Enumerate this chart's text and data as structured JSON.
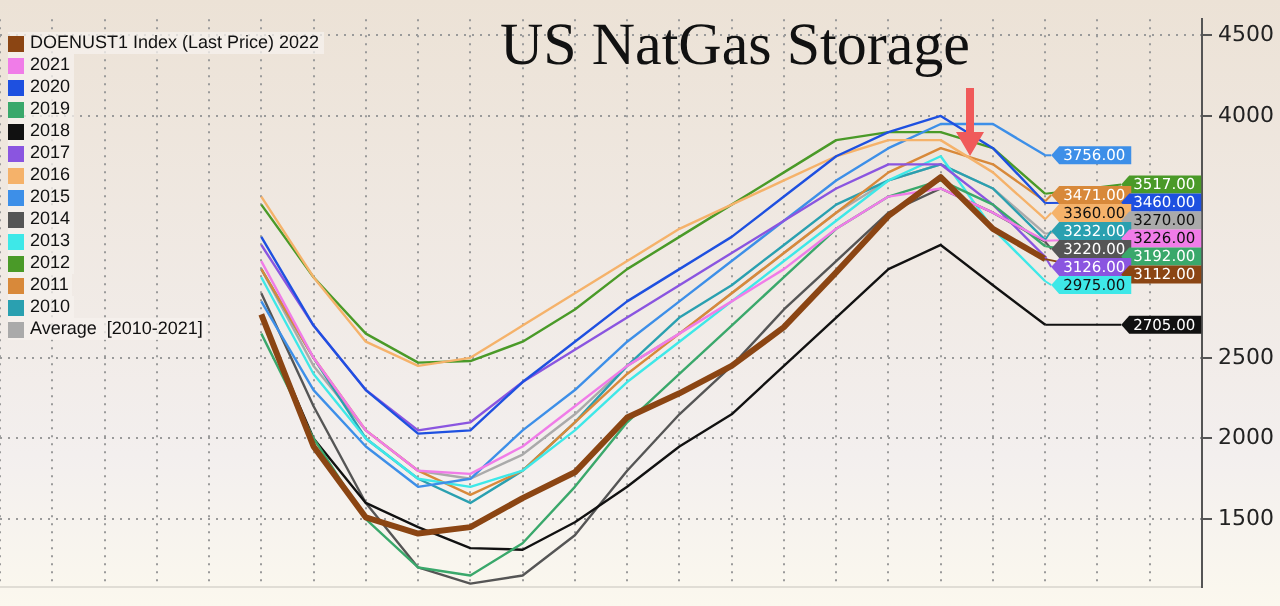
{
  "chart_data": {
    "type": "line",
    "title": "US NatGas Storage",
    "categories": [
      null,
      null,
      null,
      null,
      null,
      null,
      null,
      null,
      null,
      null,
      null,
      null,
      null,
      null,
      null,
      null,
      null,
      null,
      null,
      null,
      null,
      null,
      null,
      null
    ],
    "ylim": [
      1080,
      4600
    ],
    "yticks": [
      1500,
      2000,
      2500,
      4000,
      4500
    ],
    "grid": true,
    "legend": "top left",
    "tick_labels": "y",
    "marker": "none",
    "line_style": "solid",
    "series": [
      {
        "name": "DOENUST1 Index (Last Price) 2022",
        "color": "#8b4513",
        "values": [
          null,
          null,
          null,
          null,
          null,
          2770,
          1950,
          1510,
          1410,
          1450,
          1630,
          1790,
          2130,
          2280,
          2450,
          2690,
          3030,
          3380,
          3620,
          3300,
          3112,
          null,
          null,
          null
        ],
        "value_labels": [
          null,
          null,
          null,
          null,
          null,
          null,
          null,
          null,
          null,
          null,
          null,
          null,
          null,
          null,
          null,
          null,
          null,
          null,
          null,
          null,
          "3112.00",
          null,
          null,
          null
        ]
      },
      {
        "name": "2021",
        "color": "#f07ce8",
        "values": [
          null,
          null,
          null,
          null,
          null,
          3100,
          2500,
          2050,
          1800,
          1780,
          1950,
          2200,
          2450,
          2650,
          2850,
          3050,
          3300,
          3500,
          3550,
          3400,
          3226,
          null,
          null,
          null
        ],
        "value_labels": [
          null,
          null,
          null,
          null,
          null,
          null,
          null,
          null,
          null,
          null,
          null,
          null,
          null,
          null,
          null,
          null,
          null,
          null,
          null,
          null,
          "3226.00",
          null,
          null,
          null
        ]
      },
      {
        "name": "2020",
        "color": "#1e50e0",
        "values": [
          null,
          null,
          null,
          null,
          null,
          3250,
          2700,
          2300,
          2030,
          2050,
          2350,
          2600,
          2850,
          3050,
          3250,
          3500,
          3750,
          3900,
          4000,
          3800,
          3460,
          null,
          null,
          null
        ],
        "value_labels": [
          null,
          null,
          null,
          null,
          null,
          null,
          null,
          null,
          null,
          null,
          null,
          null,
          null,
          null,
          null,
          null,
          null,
          null,
          null,
          null,
          "3460.00",
          null,
          null,
          null
        ]
      },
      {
        "name": "2019",
        "color": "#3aa86b",
        "values": [
          null,
          null,
          null,
          null,
          null,
          2650,
          2000,
          1500,
          1200,
          1150,
          1350,
          1700,
          2100,
          2400,
          2700,
          3000,
          3300,
          3500,
          3600,
          3450,
          3192,
          null,
          null,
          null
        ],
        "value_labels": [
          null,
          null,
          null,
          null,
          null,
          null,
          null,
          null,
          null,
          null,
          null,
          null,
          null,
          null,
          null,
          null,
          null,
          null,
          null,
          null,
          "3192.00",
          null,
          null,
          null
        ]
      },
      {
        "name": "2018",
        "color": "#111111",
        "values": [
          null,
          null,
          null,
          null,
          null,
          2750,
          2000,
          1600,
          1450,
          1320,
          1310,
          1480,
          1700,
          1950,
          2150,
          2450,
          2750,
          3050,
          3200,
          2950,
          2705,
          null,
          null,
          null
        ],
        "value_labels": [
          null,
          null,
          null,
          null,
          null,
          null,
          null,
          null,
          null,
          null,
          null,
          null,
          null,
          null,
          null,
          null,
          null,
          null,
          null,
          null,
          "2705.00",
          null,
          null,
          null
        ]
      },
      {
        "name": "2017",
        "color": "#8a55e0",
        "values": [
          null,
          null,
          null,
          null,
          null,
          3200,
          2700,
          2300,
          2050,
          2100,
          2350,
          2550,
          2750,
          2950,
          3150,
          3350,
          3550,
          3700,
          3700,
          3450,
          3126,
          null,
          null,
          null
        ],
        "value_labels": [
          null,
          null,
          null,
          null,
          null,
          null,
          null,
          null,
          null,
          null,
          null,
          null,
          null,
          null,
          null,
          null,
          null,
          null,
          null,
          null,
          "3126.00",
          null,
          null,
          null
        ]
      },
      {
        "name": "2016",
        "color": "#f5b26a",
        "values": [
          null,
          null,
          null,
          null,
          null,
          3500,
          3000,
          2600,
          2450,
          2500,
          2700,
          2900,
          3100,
          3300,
          3450,
          3600,
          3750,
          3850,
          3850,
          3650,
          3360,
          null,
          null,
          null
        ],
        "value_labels": [
          null,
          null,
          null,
          null,
          null,
          null,
          null,
          null,
          null,
          null,
          null,
          null,
          null,
          null,
          null,
          null,
          null,
          null,
          null,
          null,
          "3360.00",
          null,
          null,
          null
        ]
      },
      {
        "name": "2015",
        "color": "#3d8fe8",
        "values": [
          null,
          null,
          null,
          null,
          null,
          2850,
          2300,
          1950,
          1700,
          1750,
          2050,
          2300,
          2600,
          2850,
          3100,
          3350,
          3600,
          3800,
          3950,
          3950,
          3756,
          null,
          null,
          null
        ],
        "value_labels": [
          null,
          null,
          null,
          null,
          null,
          null,
          null,
          null,
          null,
          null,
          null,
          null,
          null,
          null,
          null,
          null,
          null,
          null,
          null,
          null,
          "3756.00",
          null,
          null,
          null
        ]
      },
      {
        "name": "2014",
        "color": "#555555",
        "values": [
          null,
          null,
          null,
          null,
          null,
          2900,
          2200,
          1600,
          1200,
          1100,
          1150,
          1400,
          1800,
          2150,
          2450,
          2800,
          3100,
          3400,
          3550,
          3400,
          3220,
          null,
          null,
          null
        ],
        "value_labels": [
          null,
          null,
          null,
          null,
          null,
          null,
          null,
          null,
          null,
          null,
          null,
          null,
          null,
          null,
          null,
          null,
          null,
          null,
          null,
          null,
          "3220.00",
          null,
          null,
          null
        ]
      },
      {
        "name": "2013",
        "color": "#3ee8e8",
        "values": [
          null,
          null,
          null,
          null,
          null,
          3000,
          2400,
          2000,
          1750,
          1700,
          1800,
          2050,
          2350,
          2600,
          2850,
          3100,
          3350,
          3600,
          3750,
          3300,
          2975,
          null,
          null,
          null
        ],
        "value_labels": [
          null,
          null,
          null,
          null,
          null,
          null,
          null,
          null,
          null,
          null,
          null,
          null,
          null,
          null,
          null,
          null,
          null,
          null,
          null,
          null,
          "2975.00",
          null,
          null,
          null
        ]
      },
      {
        "name": "2012",
        "color": "#4a9a28",
        "values": [
          null,
          null,
          null,
          null,
          null,
          3450,
          3000,
          2650,
          2470,
          2480,
          2600,
          2800,
          3050,
          3250,
          3450,
          3650,
          3850,
          3900,
          3900,
          3800,
          3517,
          null,
          null,
          null
        ],
        "value_labels": [
          null,
          null,
          null,
          null,
          null,
          null,
          null,
          null,
          null,
          null,
          null,
          null,
          null,
          null,
          null,
          null,
          null,
          null,
          null,
          null,
          "3517.00",
          null,
          null,
          null
        ]
      },
      {
        "name": "2011",
        "color": "#d8893a",
        "values": [
          null,
          null,
          null,
          null,
          null,
          3050,
          2500,
          2050,
          1800,
          1650,
          1800,
          2100,
          2400,
          2650,
          2900,
          3150,
          3400,
          3650,
          3800,
          3700,
          3471,
          null,
          null,
          null
        ],
        "value_labels": [
          null,
          null,
          null,
          null,
          null,
          null,
          null,
          null,
          null,
          null,
          null,
          null,
          null,
          null,
          null,
          null,
          null,
          null,
          null,
          null,
          "3471.00",
          null,
          null,
          null
        ]
      },
      {
        "name": "2010",
        "color": "#2aa0b0",
        "values": [
          null,
          null,
          null,
          null,
          null,
          3050,
          2500,
          2000,
          1750,
          1600,
          1800,
          2100,
          2450,
          2750,
          2950,
          3200,
          3450,
          3600,
          3700,
          3550,
          3232,
          null,
          null,
          null
        ],
        "value_labels": [
          null,
          null,
          null,
          null,
          null,
          null,
          null,
          null,
          null,
          null,
          null,
          null,
          null,
          null,
          null,
          null,
          null,
          null,
          null,
          null,
          "3232.00",
          null,
          null,
          null
        ]
      },
      {
        "name": "Average  [2010-2021]",
        "color": "#aaaaaa",
        "values": [
          null,
          null,
          null,
          null,
          null,
          3050,
          2450,
          2050,
          1800,
          1750,
          1900,
          2150,
          2450,
          2650,
          2900,
          3150,
          3400,
          3600,
          3700,
          3550,
          3270,
          null,
          null,
          null
        ],
        "value_labels": [
          null,
          null,
          null,
          null,
          null,
          null,
          null,
          null,
          null,
          null,
          null,
          null,
          null,
          null,
          null,
          null,
          null,
          null,
          null,
          null,
          "3270.00",
          null,
          null,
          null
        ]
      }
    ]
  }
}
